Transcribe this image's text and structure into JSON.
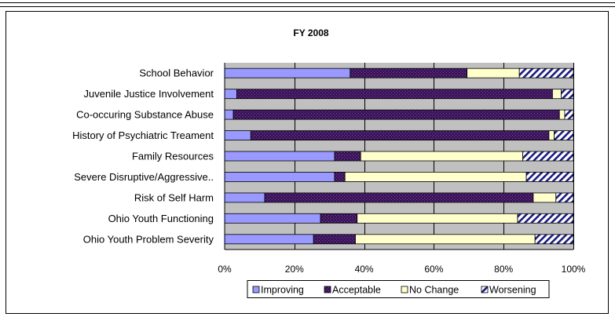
{
  "chart_data": {
    "type": "bar",
    "orientation": "horizontal",
    "stacked": "percent",
    "title": "FY 2008",
    "categories": [
      "School Behavior",
      "Juvenile Justice Involvement",
      "Co-occuring Substance Abuse",
      "History of Psychiatric Treament",
      "Family Resources",
      "Severe Disruptive/Aggressive..",
      "Risk of Self Harm",
      "Ohio Youth Functioning",
      "Ohio Youth Problem Severity"
    ],
    "series": [
      {
        "name": "Improving",
        "values": [
          36,
          3.5,
          2.5,
          7.5,
          31.5,
          31.5,
          11.5,
          27.5,
          25.5
        ]
      },
      {
        "name": "Acceptable",
        "values": [
          33.5,
          90.5,
          93.5,
          85.5,
          7.5,
          3,
          77,
          10.5,
          12
        ]
      },
      {
        "name": "No Change",
        "values": [
          15,
          2.5,
          1.5,
          1.5,
          46.5,
          52,
          6.5,
          46,
          51.5
        ]
      },
      {
        "name": "Worsening",
        "values": [
          15.5,
          3.5,
          2.5,
          5.5,
          14.5,
          13.5,
          5,
          16,
          11
        ]
      }
    ],
    "xticks": [
      "0%",
      "20%",
      "40%",
      "60%",
      "80%",
      "100%"
    ],
    "xlim": [
      0,
      100
    ],
    "grid": "vertical",
    "legend": "bottom",
    "colors": {
      "Improving": "#9999ff",
      "Acceptable": "#4d1f6b",
      "No Change": "#ffffcc",
      "Worsening": "#1a1a80",
      "plot_bg": "#c0c0c0"
    }
  }
}
